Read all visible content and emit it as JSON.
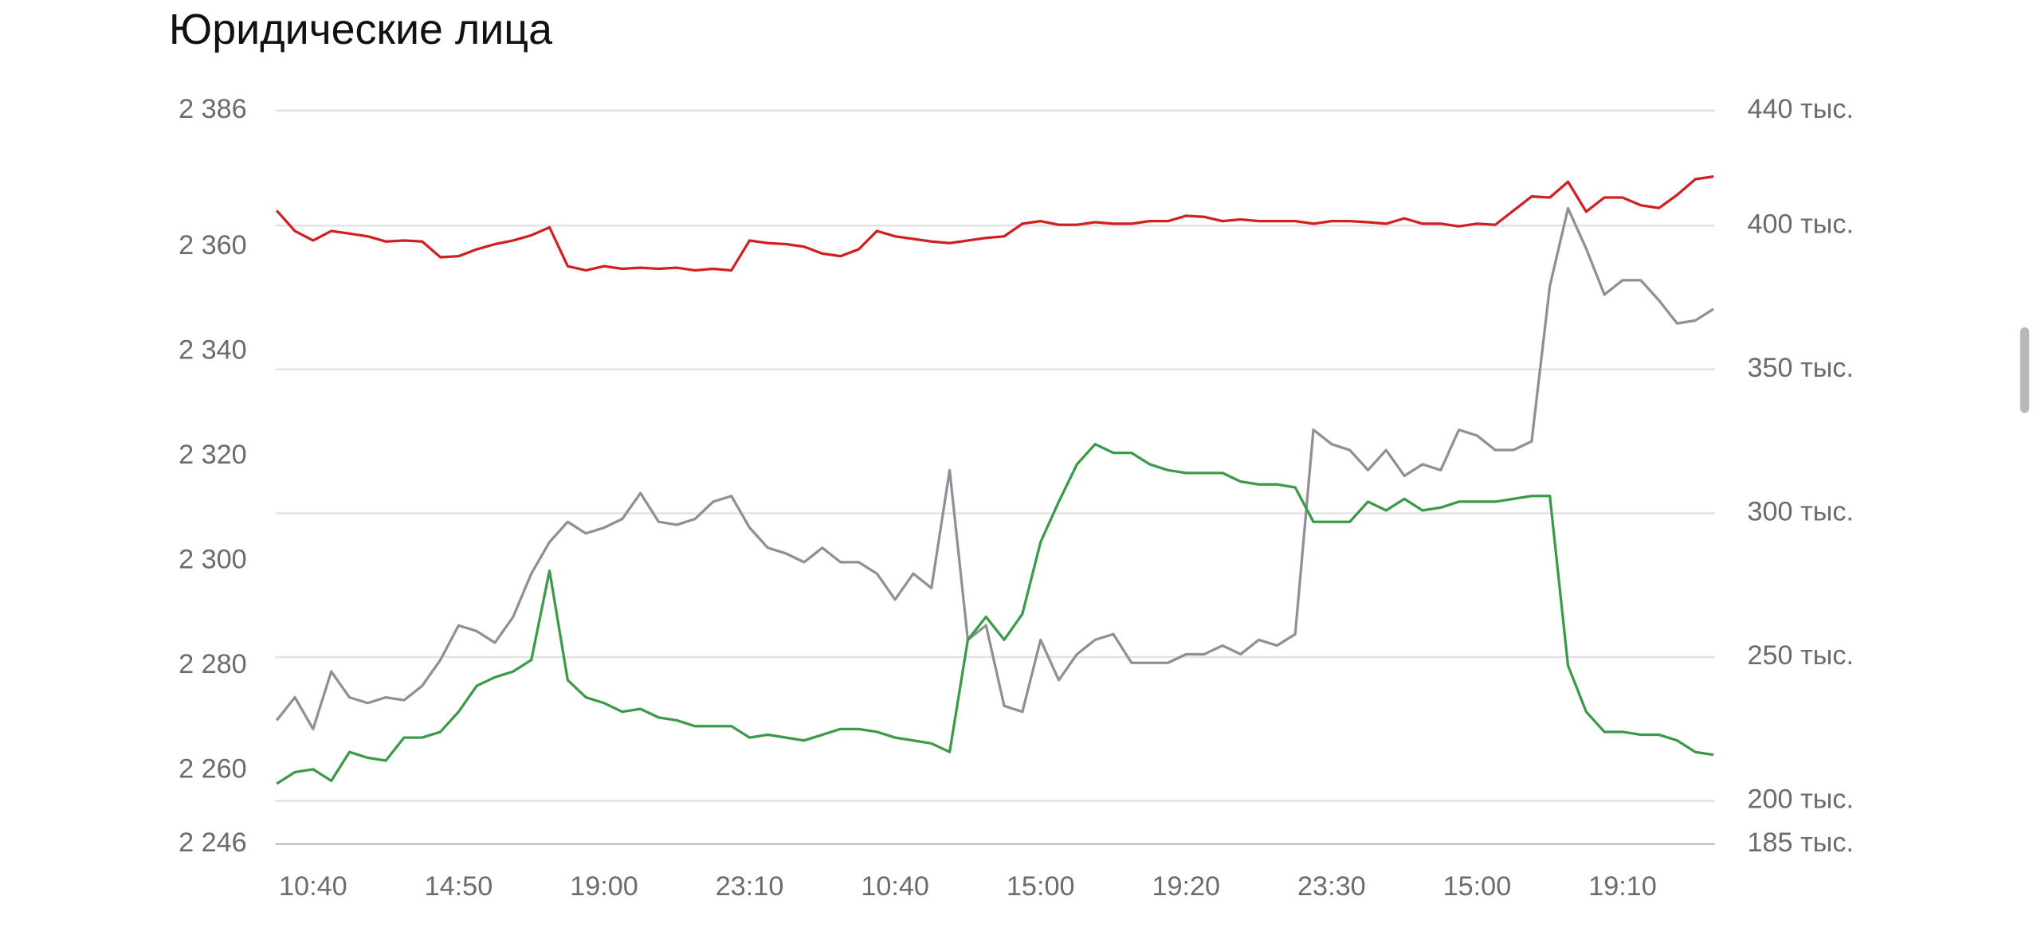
{
  "chart_data": {
    "type": "line",
    "title": "Юридические лица",
    "categories": [
      null,
      null,
      "10:40",
      null,
      null,
      null,
      null,
      null,
      null,
      null,
      "14:50",
      null,
      null,
      null,
      null,
      null,
      null,
      null,
      "19:00",
      null,
      null,
      null,
      null,
      null,
      null,
      null,
      "23:10",
      null,
      null,
      null,
      null,
      null,
      null,
      null,
      "10:40",
      null,
      null,
      null,
      null,
      null,
      null,
      null,
      "15:00",
      null,
      null,
      null,
      null,
      null,
      null,
      null,
      "19:20",
      null,
      null,
      null,
      null,
      null,
      null,
      null,
      "23:30",
      null,
      null,
      null,
      null,
      null,
      null,
      null,
      "15:00",
      null,
      null,
      null,
      null,
      null,
      null,
      null,
      "19:10",
      null,
      null,
      null,
      null,
      null
    ],
    "series": [
      {
        "color": "#d0201f",
        "axis": "y",
        "values": [
          2366.9,
          2363.0,
          2361.2,
          2363.0,
          2362.5,
          2362.0,
          2361.0,
          2361.2,
          2361.0,
          2358.0,
          2358.2,
          2359.5,
          2360.5,
          2361.2,
          2362.2,
          2363.7,
          2356.3,
          2355.5,
          2356.3,
          2355.8,
          2356.0,
          2355.8,
          2356.0,
          2355.5,
          2355.8,
          2355.5,
          2361.2,
          2360.7,
          2360.5,
          2360.0,
          2358.7,
          2358.2,
          2359.5,
          2363.0,
          2362.0,
          2361.5,
          2361.0,
          2360.7,
          2361.2,
          2361.7,
          2362.0,
          2364.4,
          2364.9,
          2364.2,
          2364.2,
          2364.7,
          2364.4,
          2364.4,
          2364.9,
          2364.9,
          2365.9,
          2365.7,
          2364.9,
          2365.2,
          2364.9,
          2364.9,
          2364.9,
          2364.4,
          2364.9,
          2364.9,
          2364.7,
          2364.4,
          2365.4,
          2364.4,
          2364.4,
          2363.9,
          2364.4,
          2364.2,
          2366.9,
          2369.6,
          2369.4,
          2372.4,
          2366.7,
          2369.4,
          2369.4,
          2367.9,
          2367.4,
          2369.9,
          2372.9,
          2373.4
        ]
      },
      {
        "color": "#8e9098",
        "axis": "y2",
        "values": [
          228000,
          236000,
          225000,
          245000,
          236000,
          234000,
          236000,
          235000,
          240000,
          249000,
          261000,
          259000,
          255000,
          264000,
          279000,
          290000,
          297000,
          293000,
          295000,
          298000,
          307000,
          297000,
          296000,
          298000,
          304000,
          306000,
          295000,
          288000,
          286000,
          283000,
          288000,
          283000,
          283000,
          279000,
          270000,
          279000,
          274000,
          315000,
          256000,
          261000,
          233000,
          231000,
          256000,
          242000,
          251000,
          256000,
          258000,
          248000,
          248000,
          248000,
          251000,
          251000,
          254000,
          251000,
          256000,
          254000,
          258000,
          329000,
          324000,
          322000,
          315000,
          322000,
          313000,
          317000,
          315000,
          329000,
          327000,
          322000,
          322000,
          325000,
          379000,
          406000,
          392000,
          376000,
          381000,
          381000,
          374000,
          366000,
          367000,
          371000
        ]
      },
      {
        "color": "#3a9a49",
        "axis": "y2",
        "values": [
          206000,
          210000,
          211000,
          207000,
          217000,
          215000,
          214000,
          222000,
          222000,
          224000,
          231000,
          240000,
          243000,
          245000,
          249000,
          280000,
          242000,
          236000,
          234000,
          231000,
          232000,
          229000,
          228000,
          226000,
          226000,
          226000,
          222000,
          223000,
          222000,
          221000,
          223000,
          225000,
          225000,
          224000,
          222000,
          221000,
          220000,
          217000,
          256000,
          264000,
          256000,
          265000,
          290000,
          304000,
          317000,
          324000,
          321000,
          321000,
          317000,
          315000,
          314000,
          314000,
          314000,
          311000,
          310000,
          310000,
          309000,
          297000,
          297000,
          297000,
          304000,
          301000,
          305000,
          301000,
          302000,
          304000,
          304000,
          304000,
          305000,
          306000,
          306000,
          247000,
          231000,
          224000,
          224000,
          223000,
          223000,
          221000,
          217000,
          216000
        ]
      }
    ],
    "ylim": [
      2246,
      2386
    ],
    "yticks": [
      {
        "value": 2386,
        "label": "2 386"
      },
      {
        "value": 2360,
        "label": "2 360"
      },
      {
        "value": 2340,
        "label": "2 340"
      },
      {
        "value": 2320,
        "label": "2 320"
      },
      {
        "value": 2300,
        "label": "2 300"
      },
      {
        "value": 2280,
        "label": "2 280"
      },
      {
        "value": 2260,
        "label": "2 260"
      },
      {
        "value": 2246,
        "label": "2 246"
      }
    ],
    "y2lim": [
      185000,
      440000
    ],
    "y2ticks": [
      {
        "value": 440000,
        "label": "440 тыс."
      },
      {
        "value": 400000,
        "label": "400 тыс."
      },
      {
        "value": 350000,
        "label": "350 тыс."
      },
      {
        "value": 300000,
        "label": "300 тыс."
      },
      {
        "value": 250000,
        "label": "250 тыс."
      },
      {
        "value": 200000,
        "label": "200 тыс."
      },
      {
        "value": 185000,
        "label": "185 тыс."
      }
    ],
    "grid": true
  }
}
